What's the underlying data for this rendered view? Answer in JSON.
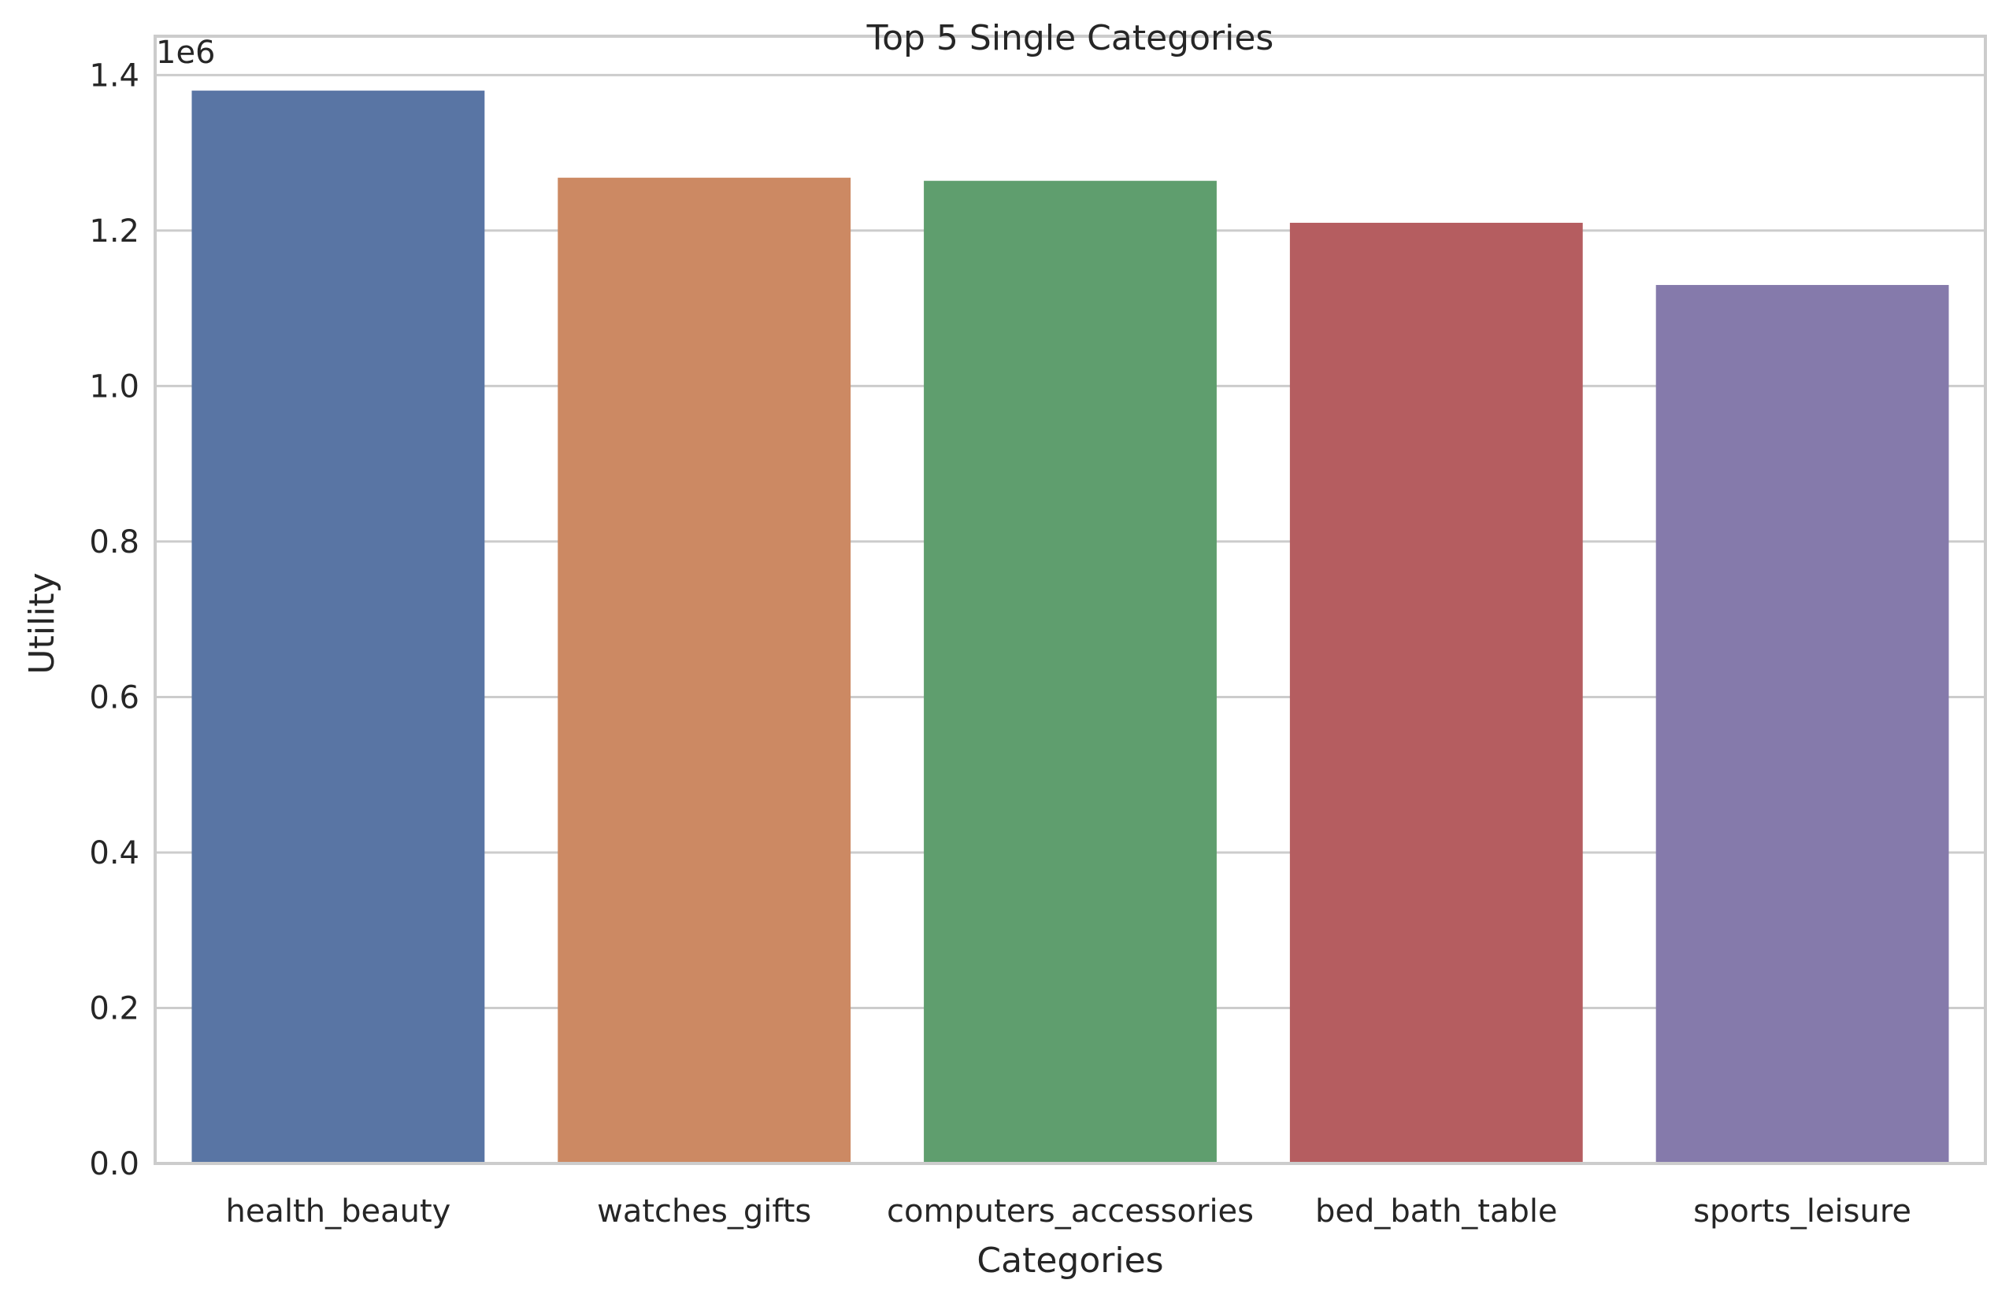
{
  "chart_data": {
    "type": "bar",
    "title": "Top 5 Single Categories",
    "xlabel": "Categories",
    "ylabel": "Utility",
    "y_offset_label": "1e6",
    "categories": [
      "health_beauty",
      "watches_gifts",
      "computers_accessories",
      "bed_bath_table",
      "sports_leisure"
    ],
    "values": [
      1380000,
      1268000,
      1264000,
      1210000,
      1130000
    ],
    "colors": [
      "#5975a4",
      "#cc8963",
      "#5f9e6e",
      "#b55d60",
      "#857aab"
    ],
    "ylim": [
      0,
      1450000
    ],
    "yticks": [
      0,
      200000,
      400000,
      600000,
      800000,
      1000000,
      1200000,
      1400000
    ],
    "ytick_labels": [
      "0.0",
      "0.2",
      "0.4",
      "0.6",
      "0.8",
      "1.0",
      "1.2",
      "1.4"
    ],
    "grid": "horizontal",
    "legend": "none"
  }
}
